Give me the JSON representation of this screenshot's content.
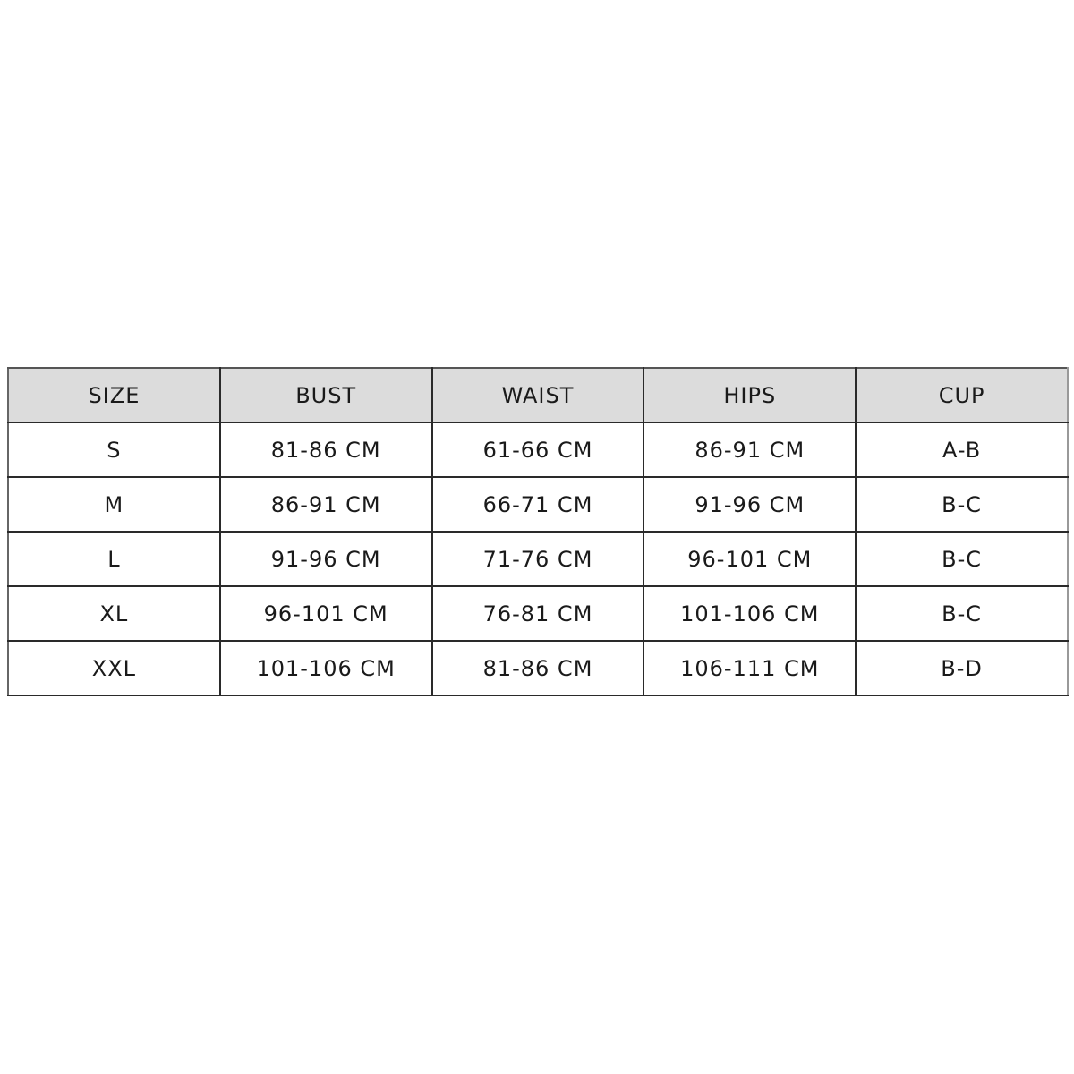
{
  "table": {
    "headers": [
      "SIZE",
      "BUST",
      "WAIST",
      "HIPS",
      "CUP"
    ],
    "rows": [
      [
        "S",
        "81-86 CM",
        "61-66 CM",
        "86-91 CM",
        "A-B"
      ],
      [
        "M",
        "86-91 CM",
        "66-71 CM",
        "91-96 CM",
        "B-C"
      ],
      [
        "L",
        "91-96 CM",
        "71-76 CM",
        "96-101 CM",
        "B-C"
      ],
      [
        "XL",
        "96-101 CM",
        "76-81 CM",
        "101-106 CM",
        "B-C"
      ],
      [
        "XXL",
        "101-106 CM",
        "81-86 CM",
        "106-111 CM",
        "B-D"
      ]
    ],
    "header_bg": "#dcdcdc",
    "border_color": "#2a2a2a"
  }
}
